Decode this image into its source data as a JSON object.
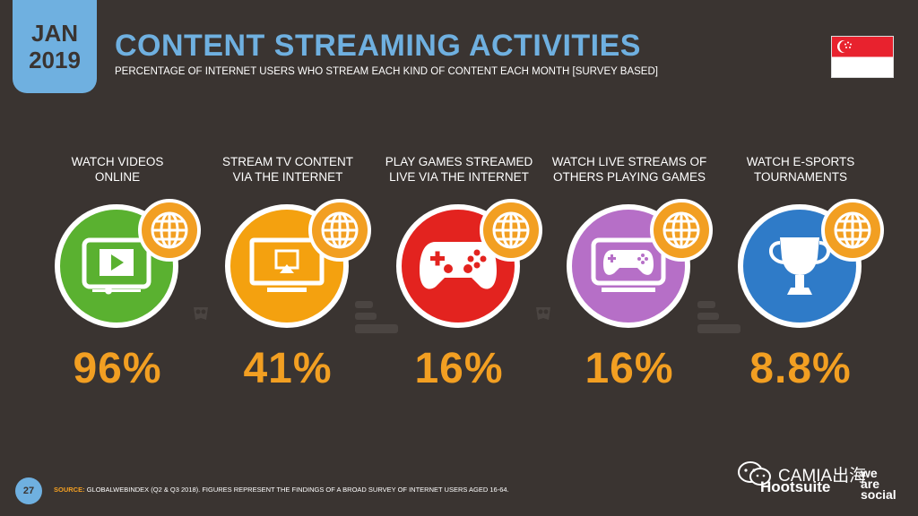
{
  "badge": {
    "month": "JAN",
    "year": "2019"
  },
  "header": {
    "title": "CONTENT STREAMING ACTIVITIES",
    "subtitle": "PERCENTAGE OF INTERNET USERS WHO STREAM EACH KIND OF CONTENT EACH MONTH [SURVEY BASED]"
  },
  "flag": {
    "country_icon": "singapore-flag-icon",
    "colors": {
      "top": "#e8222e",
      "bottom": "#ffffff"
    }
  },
  "colors": {
    "accent": "#f29f22",
    "title": "#6fb0e0",
    "background": "#3a3431"
  },
  "stats": [
    {
      "label_line1": "WATCH VIDEOS",
      "label_line2": "ONLINE",
      "value": "96%",
      "color": "#5ab130",
      "icon": "video-player-icon"
    },
    {
      "label_line1": "STREAM TV CONTENT",
      "label_line2": "VIA THE INTERNET",
      "value": "41%",
      "color": "#f4a10f",
      "icon": "tv-stream-icon"
    },
    {
      "label_line1": "PLAY GAMES STREAMED",
      "label_line2": "LIVE VIA THE INTERNET",
      "value": "16%",
      "color": "#e3231f",
      "icon": "gamepad-icon"
    },
    {
      "label_line1": "WATCH LIVE STREAMS OF",
      "label_line2": "OTHERS PLAYING GAMES",
      "value": "16%",
      "color": "#b66fc7",
      "icon": "screen-gamepad-icon"
    },
    {
      "label_line1": "WATCH E-SPORTS",
      "label_line2": "TOURNAMENTS",
      "value": "8.8%",
      "color": "#2f7bc8",
      "icon": "trophy-icon"
    }
  ],
  "footer": {
    "page_number": "27",
    "source_label": "SOURCE:",
    "source_text": "GLOBALWEBINDEX (Q2 & Q3 2018). FIGURES REPRESENT THE FINDINGS OF A BROAD SURVEY OF INTERNET USERS AGED 16-64.",
    "brand_hootsuite": "Hootsuite",
    "brand_wearesocial": [
      "we",
      "are",
      "social"
    ],
    "wechat_text": "CAMIA出海"
  }
}
